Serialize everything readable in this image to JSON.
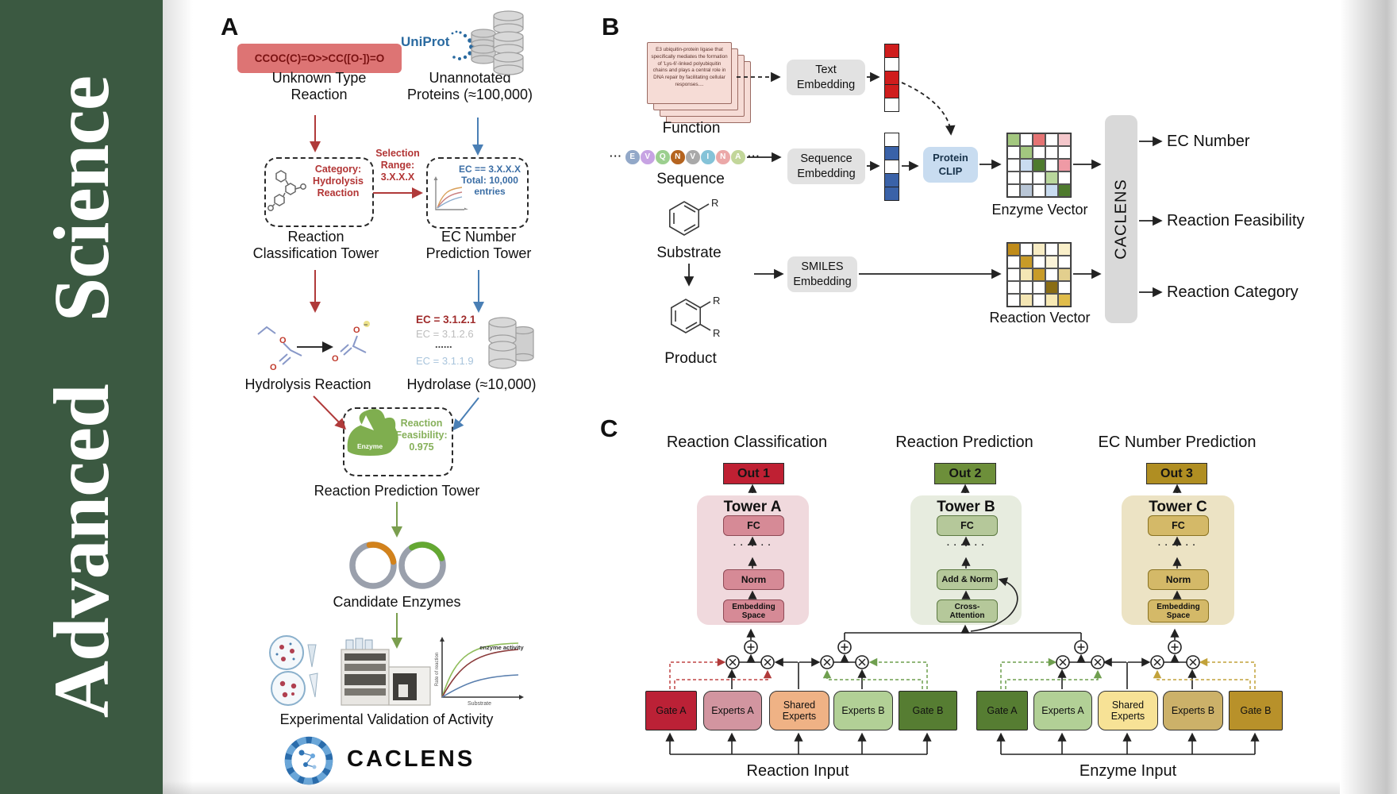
{
  "journal": {
    "name": "Advanced Science"
  },
  "panel_a": {
    "label": "A",
    "smiles_reaction": "CCOC(C)=O>>CC([O-])=O",
    "unknown_type_reaction": "Unknown Type\nReaction",
    "uniprot_logo": "UniProt",
    "unannotated_proteins": "Unannotated\nProteins (≈100,000)",
    "category_box": "Category:\nHydrolysis\nReaction",
    "selection_range": "Selection\nRange:\n3.X.X.X",
    "ec_selection_box": "EC == 3.X.X.X\nTotal: 10,000\nentries",
    "reaction_classification_tower": "Reaction\nClassification Tower",
    "ec_number_prediction_tower": "EC Number\nPrediction Tower",
    "hydrolysis_reaction": "Hydrolysis Reaction",
    "ec_list": [
      {
        "text": "EC = 3.1.2.1",
        "color": "#a02c2c"
      },
      {
        "text": "EC = 3.1.2.6",
        "color": "#bdbdbd"
      },
      {
        "text": "......",
        "color": "#444444"
      },
      {
        "text": "EC = 3.1.1.9",
        "color": "#a8c4dc"
      }
    ],
    "hydrolase": "Hydrolase (≈10,000)",
    "enzyme_badge": "Enzyme",
    "reaction_feasibility": "Reaction\nFeasibility:\n0.975",
    "reaction_prediction_tower": "Reaction Prediction Tower",
    "candidate_enzymes": "Candidate Enzymes",
    "activity_chart": {
      "curve_label": "enzyme activity",
      "ylabel": "Rate of reaction",
      "xlabel": "Substrate"
    },
    "experimental_validation": "Experimental Validation of Activity",
    "caclens_logo": "CACLENS"
  },
  "panel_b": {
    "label": "B",
    "function_card_text": "E3 ubiquitin-protein ligase that specifically mediates the formation of 'Lys-6'-linked polyubiquitin chains and plays a central role in DNA repair by facilitating cellular responses....",
    "function_label": "Function",
    "sequence_label": "Sequence",
    "sequence_ellipsis": "···",
    "sequence_residues": [
      {
        "letter": "E",
        "color": "#92a8c8"
      },
      {
        "letter": "V",
        "color": "#c7a3e3"
      },
      {
        "letter": "Q",
        "color": "#9ccf8f"
      },
      {
        "letter": "N",
        "color": "#b5641f"
      },
      {
        "letter": "V",
        "color": "#a9a9a9"
      },
      {
        "letter": "I",
        "color": "#85c3d8"
      },
      {
        "letter": "N",
        "color": "#eba8a8"
      },
      {
        "letter": "A",
        "color": "#c2d69a"
      }
    ],
    "substrate_label": "Substrate",
    "product_label": "Product",
    "r_group": "R",
    "text_embedding": "Text\nEmbedding",
    "sequence_embedding": "Sequence\nEmbedding",
    "smiles_embedding": "SMILES\nEmbedding",
    "protein_clip": "Protein\nCLIP",
    "text_vector": [
      "#cf1d1d",
      "#ffffff",
      "#cf1d1d",
      "#cf1d1d",
      "#ffffff"
    ],
    "sequence_vector": [
      "#ffffff",
      "#3a62a8",
      "#ffffff",
      "#3a62a8",
      "#3a62a8"
    ],
    "enzyme_vector_label": "Enzyme Vector",
    "reaction_vector_label": "Reaction Vector",
    "enzyme_vector_grid": [
      [
        "#a3c77f",
        "#ffffff",
        "#e57373",
        "#ffffff",
        "#f4c7cb"
      ],
      [
        "#ffffff",
        "#a3c77f",
        "#ffffff",
        "#ffffff",
        "#ffffff"
      ],
      [
        "#ffffff",
        "#c9dcf0",
        "#4e7a2d",
        "#ffffff",
        "#ef9aa5"
      ],
      [
        "#ffffff",
        "#ffffff",
        "#ffffff",
        "#b9d79c",
        "#ffffff"
      ],
      [
        "#ffffff",
        "#b9c6d6",
        "#ffffff",
        "#c9dcf0",
        "#4e7a2d"
      ]
    ],
    "reaction_vector_grid": [
      [
        "#c08c1a",
        "#ffffff",
        "#f7ecc4",
        "#ffffff",
        "#f9efc9"
      ],
      [
        "#ffffff",
        "#c89b28",
        "#ffffff",
        "#fbf3d8",
        "#ffffff"
      ],
      [
        "#ffffff",
        "#f4e6b4",
        "#c89b28",
        "#ffffff",
        "#e3cf8e"
      ],
      [
        "#ffffff",
        "#ffffff",
        "#ffffff",
        "#8a6d14",
        "#ffffff"
      ],
      [
        "#ffffff",
        "#f4e6b4",
        "#ffffff",
        "#f7e9b4",
        "#e0bc4a"
      ]
    ],
    "caclens_block": "CACLENS",
    "outputs": [
      "EC Number",
      "Reaction Feasibility",
      "Reaction Category"
    ]
  },
  "panel_c": {
    "label": "C",
    "headers": [
      "Reaction Classification",
      "Reaction Prediction",
      "EC Number Prediction"
    ],
    "towers": [
      {
        "out": "Out 1",
        "name": "Tower A",
        "fc": "FC",
        "dots": "· · · · · ·",
        "mid": "Norm",
        "base": "Embedding\nSpace"
      },
      {
        "out": "Out 2",
        "name": "Tower B",
        "fc": "FC",
        "dots": "· · · · · ·",
        "mid": "Add & Norm",
        "base": "Cross-\nAttention"
      },
      {
        "out": "Out 3",
        "name": "Tower C",
        "fc": "FC",
        "dots": "· · · · · ·",
        "mid": "Norm",
        "base": "Embedding\nSpace"
      }
    ],
    "moe_left": {
      "gate_a": "Gate A",
      "experts_a": "Experts A",
      "shared": "Shared\nExperts",
      "experts_b": "Experts B",
      "gate_b": "Gate B",
      "input_label": "Reaction Input"
    },
    "moe_right": {
      "gate_a": "Gate A",
      "experts_a": "Experts A",
      "shared": "Shared\nExperts",
      "experts_b": "Experts B",
      "gate_b": "Gate B",
      "input_label": "Enzyme Input"
    }
  },
  "colors": {
    "sidebar_green": "#3b5941",
    "smiles_box_bg": "#dd7474",
    "smiles_text": "#7a1212",
    "red_accent": "#b03a3a",
    "blue_accent": "#4a7fb5",
    "green_accent": "#7a9e4e",
    "uniprot_blue": "#2a6aa0",
    "feasibility_green": "#86b05a",
    "embed_box_gray": "#e2e2e2",
    "protein_clip_blue": "#c8dcf0",
    "caclens_bar_gray": "#d9d9d9",
    "vector_red": "#cf1d1d",
    "vector_blue": "#3a62a8",
    "out1": "#bf2033",
    "out2": "#6d8f3a",
    "out3": "#b08e22",
    "towerA_bg": "#f0d9dd",
    "towerA_box": "#d68a96",
    "towerB_bg": "#e7ecdf",
    "towerB_box": "#b5c89a",
    "towerC_bg": "#ece3c4",
    "towerC_box": "#d4b968",
    "gateA_left": "#bb2136",
    "expertsA_left": "#d295a0",
    "shared_left": "#efb285",
    "expertsB_left": "#b2d096",
    "gateB_left": "#567d32",
    "gateA_right": "#567d32",
    "expertsA_right": "#b2d096",
    "shared_right": "#f7e296",
    "expertsB_right": "#ccb169",
    "gateB_right": "#b8912a"
  }
}
